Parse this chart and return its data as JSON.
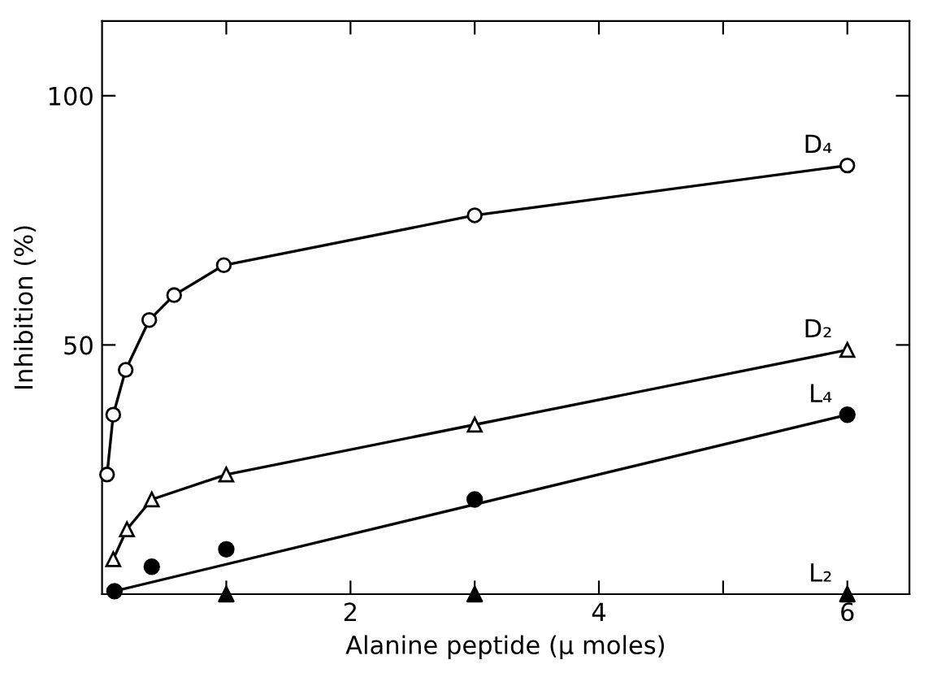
{
  "chart_data": {
    "type": "line",
    "xlabel": "Alanine peptide (μ moles)",
    "ylabel": "Inhibition (%)",
    "xlim": [
      0,
      6.5
    ],
    "ylim": [
      0,
      115
    ],
    "xticks": [
      {
        "value": 1,
        "label": null
      },
      2,
      {
        "value": 3,
        "label": null
      },
      4,
      {
        "value": 5,
        "label": null
      },
      6
    ],
    "yticks": [
      50,
      100
    ],
    "grid": false,
    "legend": false,
    "series": [
      {
        "name": "D₄",
        "marker": "circle",
        "color": "#000000",
        "x": [
          0.04,
          0.09,
          0.19,
          0.38,
          0.58,
          0.98,
          3,
          6
        ],
        "values": [
          24,
          36,
          45,
          55,
          60,
          66,
          76,
          86
        ]
      },
      {
        "name": "D₂",
        "marker": "triangle",
        "color": "#000000",
        "x": [
          0.09,
          0.2,
          0.4,
          1,
          3,
          6
        ],
        "values": [
          7,
          13,
          19,
          24,
          34,
          49
        ]
      },
      {
        "name": "L₄",
        "type": "scatter",
        "marker": "circle",
        "color": "#000000",
        "x": [
          0.1,
          0.4,
          1,
          3,
          6
        ],
        "values": [
          0.6,
          5.5,
          9,
          19,
          36
        ]
      },
      {
        "marker": "none",
        "color": "#000000",
        "x": [
          0.1,
          6
        ],
        "values": [
          0.6,
          36
        ]
      },
      {
        "name": "L₂",
        "type": "scatter",
        "marker": "triangle",
        "color": "#000000",
        "x": [
          1,
          3,
          6
        ],
        "values": [
          0,
          0,
          0
        ]
      }
    ]
  }
}
